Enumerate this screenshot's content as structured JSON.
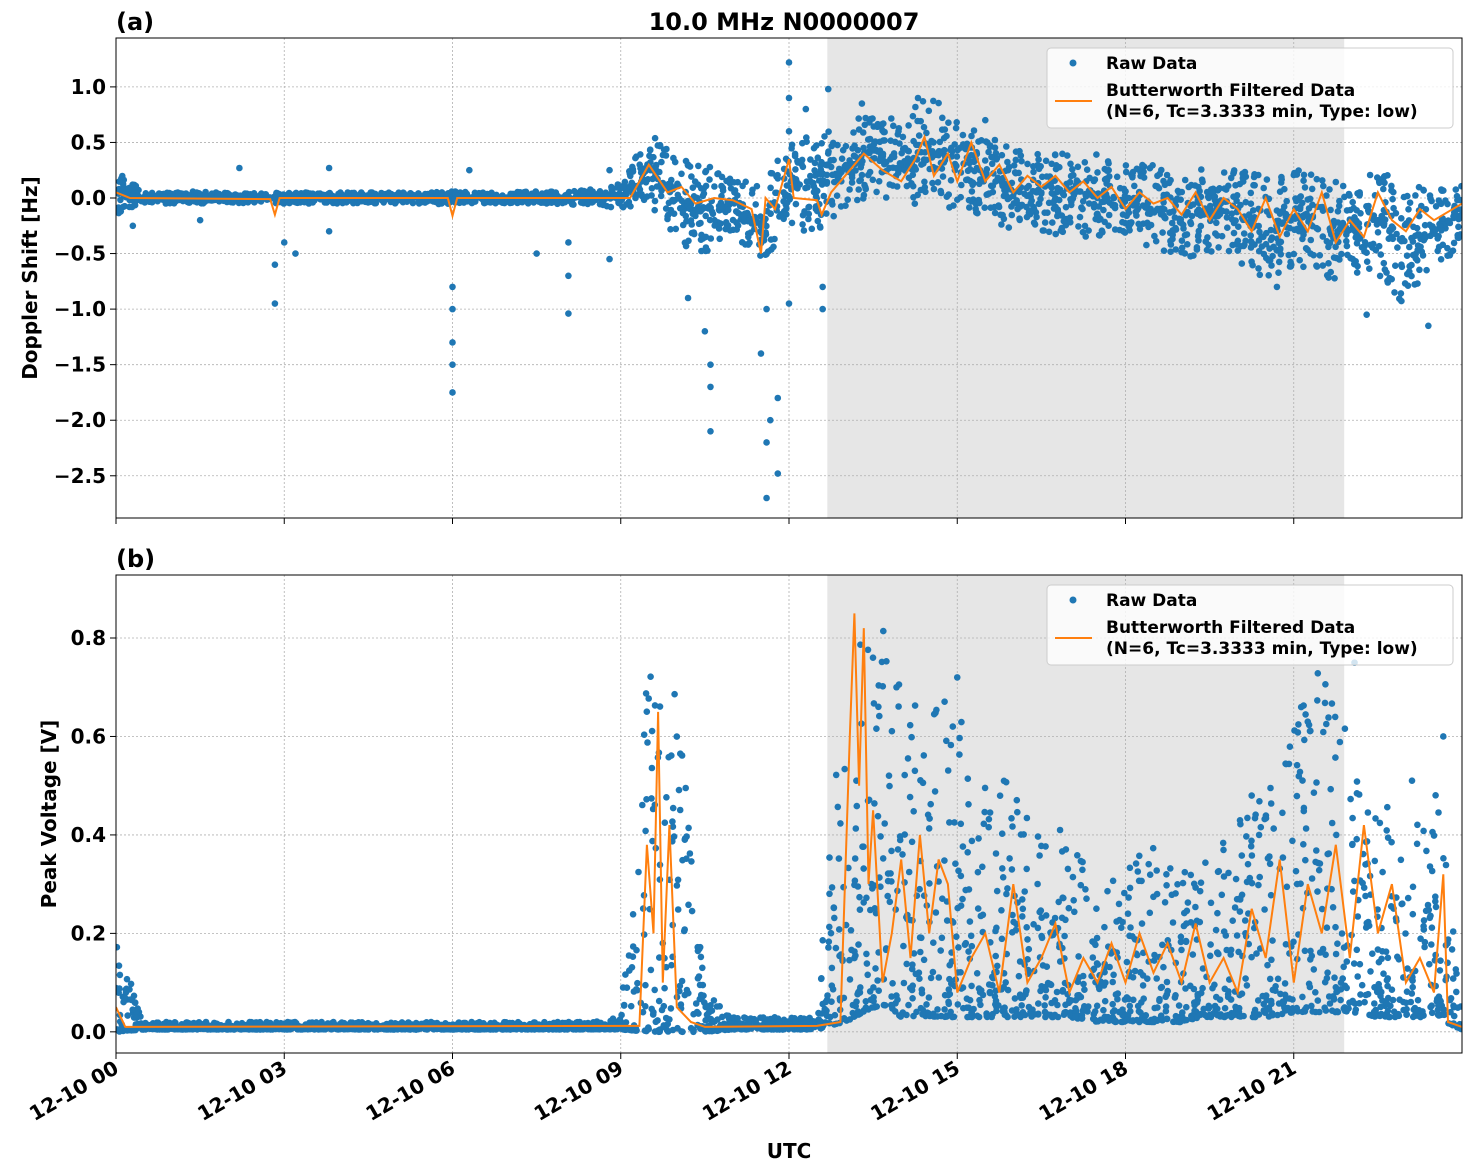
{
  "title": "10.0 MHz N0000007",
  "colors": {
    "raw": "#1f77b4",
    "filtered": "#ff7f0e",
    "shade": "#e6e6e6",
    "grid": "#b0b0b0"
  },
  "x_axis": {
    "label": "UTC",
    "xlim": [
      "00:00",
      "24:00"
    ],
    "ticks": [
      "00:00",
      "03:00",
      "06:00",
      "09:00",
      "12:00",
      "15:00",
      "18:00",
      "21:00"
    ],
    "tick_labels": [
      "12-10 00",
      "12-10 03",
      "12-10 06",
      "12-10 09",
      "12-10 12",
      "12-10 15",
      "12-10 18",
      "12-10 21"
    ]
  },
  "shaded_interval": [
    "12:41",
    "21:54"
  ],
  "chart_data": [
    {
      "type": "scatter+line",
      "panel_label": "(a)",
      "title": "10.0 MHz N0000007",
      "ylabel": "Doppler Shift [Hz]",
      "ylim": [
        -2.88,
        1.44
      ],
      "yticks": [
        1.0,
        0.5,
        0.0,
        -0.5,
        -1.0,
        -1.5,
        -2.0,
        -2.5
      ],
      "ytick_labels": [
        "1.0",
        "0.5",
        "0.0",
        "−0.5",
        "−1.0",
        "−1.5",
        "−2.0",
        "−2.5"
      ],
      "grid": true,
      "legend": {
        "position": "top-right",
        "raw": "Raw Data",
        "filtered_line1": "Butterworth Filtered Data",
        "filtered_line2": "(N=6, Tc=3.3333 min, Type: low)"
      },
      "raw_envelope": [
        [
          "00:00",
          -0.15,
          0.25
        ],
        [
          "00:30",
          -0.05,
          0.05
        ],
        [
          "01:00",
          -0.05,
          0.05
        ],
        [
          "01:30",
          -0.05,
          0.06
        ],
        [
          "02:00",
          -0.05,
          0.05
        ],
        [
          "02:30",
          -0.05,
          0.05
        ],
        [
          "03:00",
          -0.05,
          0.05
        ],
        [
          "03:30",
          -0.05,
          0.05
        ],
        [
          "04:00",
          -0.05,
          0.05
        ],
        [
          "04:30",
          -0.05,
          0.05
        ],
        [
          "05:00",
          -0.05,
          0.05
        ],
        [
          "05:30",
          -0.05,
          0.05
        ],
        [
          "06:00",
          -0.06,
          0.06
        ],
        [
          "06:30",
          -0.05,
          0.05
        ],
        [
          "07:00",
          -0.05,
          0.05
        ],
        [
          "07:30",
          -0.05,
          0.06
        ],
        [
          "08:00",
          -0.06,
          0.06
        ],
        [
          "08:30",
          -0.06,
          0.08
        ],
        [
          "09:00",
          -0.1,
          0.15
        ],
        [
          "09:30",
          -0.05,
          0.6
        ],
        [
          "10:00",
          -0.4,
          0.35
        ],
        [
          "10:30",
          -0.5,
          0.3
        ],
        [
          "11:00",
          -0.3,
          0.2
        ],
        [
          "11:30",
          -0.6,
          0.1
        ],
        [
          "12:00",
          -0.3,
          0.5
        ],
        [
          "12:30",
          -0.3,
          0.6
        ],
        [
          "13:00",
          -0.1,
          0.6
        ],
        [
          "13:30",
          0.0,
          0.9
        ],
        [
          "14:00",
          -0.1,
          0.7
        ],
        [
          "14:30",
          -0.1,
          0.95
        ],
        [
          "15:00",
          -0.1,
          0.7
        ],
        [
          "15:30",
          -0.2,
          0.6
        ],
        [
          "16:00",
          -0.3,
          0.45
        ],
        [
          "16:30",
          -0.3,
          0.4
        ],
        [
          "17:00",
          -0.35,
          0.45
        ],
        [
          "17:30",
          -0.35,
          0.4
        ],
        [
          "18:00",
          -0.35,
          0.3
        ],
        [
          "18:30",
          -0.45,
          0.3
        ],
        [
          "19:00",
          -0.55,
          0.2
        ],
        [
          "19:30",
          -0.5,
          0.3
        ],
        [
          "20:00",
          -0.6,
          0.35
        ],
        [
          "20:30",
          -0.8,
          0.3
        ],
        [
          "21:00",
          -0.6,
          0.3
        ],
        [
          "21:30",
          -0.8,
          0.2
        ],
        [
          "22:00",
          -0.7,
          0.1
        ],
        [
          "22:30",
          -0.7,
          0.3
        ],
        [
          "23:00",
          -1.0,
          0.15
        ],
        [
          "23:30",
          -0.7,
          0.1
        ],
        [
          "24:00",
          -0.4,
          0.2
        ]
      ],
      "raw_outliers": [
        [
          "00:18",
          -0.25
        ],
        [
          "01:30",
          -0.2
        ],
        [
          "02:12",
          0.27
        ],
        [
          "02:50",
          -0.95
        ],
        [
          "02:50",
          -0.6
        ],
        [
          "03:00",
          -0.4
        ],
        [
          "03:12",
          -0.5
        ],
        [
          "03:48",
          0.27
        ],
        [
          "03:48",
          -0.3
        ],
        [
          "06:00",
          -1.75
        ],
        [
          "06:00",
          -1.5
        ],
        [
          "06:00",
          -1.3
        ],
        [
          "06:00",
          -1.0
        ],
        [
          "06:00",
          -0.8
        ],
        [
          "06:18",
          0.25
        ],
        [
          "07:30",
          -0.5
        ],
        [
          "08:04",
          -1.04
        ],
        [
          "08:04",
          -0.7
        ],
        [
          "08:04",
          -0.4
        ],
        [
          "08:48",
          -0.55
        ],
        [
          "08:48",
          0.25
        ],
        [
          "10:12",
          -0.9
        ],
        [
          "10:30",
          -1.2
        ],
        [
          "10:36",
          -1.7
        ],
        [
          "10:36",
          -2.1
        ],
        [
          "10:36",
          -1.5
        ],
        [
          "11:30",
          -1.4
        ],
        [
          "11:36",
          -2.7
        ],
        [
          "11:36",
          -2.2
        ],
        [
          "11:40",
          -2.0
        ],
        [
          "11:36",
          -1.0
        ],
        [
          "11:48",
          -2.48
        ],
        [
          "11:48",
          -1.8
        ],
        [
          "12:00",
          1.22
        ],
        [
          "12:00",
          0.9
        ],
        [
          "12:00",
          0.6
        ],
        [
          "12:00",
          -0.95
        ],
        [
          "12:18",
          0.8
        ],
        [
          "12:36",
          -1.0
        ],
        [
          "12:36",
          -0.8
        ],
        [
          "12:42",
          0.98
        ],
        [
          "13:18",
          0.85
        ],
        [
          "14:18",
          0.9
        ],
        [
          "15:30",
          0.7
        ],
        [
          "20:42",
          -0.8
        ],
        [
          "21:18",
          -0.5
        ],
        [
          "22:18",
          -1.05
        ],
        [
          "23:24",
          -1.15
        ]
      ],
      "filtered": [
        [
          "00:00",
          0.05
        ],
        [
          "00:15",
          0.0
        ],
        [
          "02:45",
          -0.01
        ],
        [
          "02:50",
          -0.15
        ],
        [
          "02:55",
          0.0
        ],
        [
          "05:55",
          0.0
        ],
        [
          "06:00",
          -0.16
        ],
        [
          "06:05",
          0.0
        ],
        [
          "09:10",
          0.0
        ],
        [
          "09:30",
          0.3
        ],
        [
          "09:50",
          0.05
        ],
        [
          "10:05",
          0.1
        ],
        [
          "10:20",
          -0.05
        ],
        [
          "10:40",
          0.0
        ],
        [
          "11:00",
          -0.02
        ],
        [
          "11:20",
          -0.1
        ],
        [
          "11:30",
          -0.5
        ],
        [
          "11:35",
          0.0
        ],
        [
          "11:45",
          -0.1
        ],
        [
          "12:00",
          0.35
        ],
        [
          "12:05",
          0.0
        ],
        [
          "12:30",
          -0.02
        ],
        [
          "12:35",
          -0.15
        ],
        [
          "12:45",
          0.05
        ],
        [
          "13:00",
          0.2
        ],
        [
          "13:20",
          0.4
        ],
        [
          "13:40",
          0.25
        ],
        [
          "14:00",
          0.15
        ],
        [
          "14:15",
          0.35
        ],
        [
          "14:25",
          0.55
        ],
        [
          "14:35",
          0.2
        ],
        [
          "14:50",
          0.4
        ],
        [
          "15:00",
          0.15
        ],
        [
          "15:15",
          0.5
        ],
        [
          "15:30",
          0.15
        ],
        [
          "15:45",
          0.3
        ],
        [
          "16:00",
          0.05
        ],
        [
          "16:15",
          0.2
        ],
        [
          "16:30",
          0.1
        ],
        [
          "16:45",
          0.2
        ],
        [
          "17:00",
          0.05
        ],
        [
          "17:15",
          0.15
        ],
        [
          "17:30",
          0.0
        ],
        [
          "17:45",
          0.1
        ],
        [
          "18:00",
          -0.1
        ],
        [
          "18:15",
          0.05
        ],
        [
          "18:30",
          -0.05
        ],
        [
          "18:45",
          0.0
        ],
        [
          "19:00",
          -0.15
        ],
        [
          "19:15",
          0.05
        ],
        [
          "19:30",
          -0.2
        ],
        [
          "19:45",
          0.0
        ],
        [
          "20:00",
          -0.1
        ],
        [
          "20:15",
          -0.3
        ],
        [
          "20:30",
          0.0
        ],
        [
          "20:45",
          -0.35
        ],
        [
          "21:00",
          -0.1
        ],
        [
          "21:15",
          -0.3
        ],
        [
          "21:30",
          0.05
        ],
        [
          "21:45",
          -0.4
        ],
        [
          "22:00",
          -0.2
        ],
        [
          "22:15",
          -0.35
        ],
        [
          "22:30",
          0.05
        ],
        [
          "22:45",
          -0.2
        ],
        [
          "23:00",
          -0.3
        ],
        [
          "23:15",
          -0.1
        ],
        [
          "23:30",
          -0.2
        ],
        [
          "24:00",
          -0.05
        ]
      ]
    },
    {
      "type": "scatter+line",
      "panel_label": "(b)",
      "ylabel": "Peak Voltage [V]",
      "ylim": [
        -0.043,
        0.928
      ],
      "yticks": [
        0.0,
        0.2,
        0.4,
        0.6,
        0.8
      ],
      "ytick_labels": [
        "0.0",
        "0.2",
        "0.4",
        "0.6",
        "0.8"
      ],
      "grid": true,
      "legend": {
        "position": "top-right",
        "raw": "Raw Data",
        "filtered_line1": "Butterworth Filtered Data",
        "filtered_line2": "(N=6, Tc=3.3333 min, Type: low)"
      },
      "raw_envelope": [
        [
          "00:00",
          0.0,
          0.19
        ],
        [
          "00:30",
          0.005,
          0.02
        ],
        [
          "01:00",
          0.005,
          0.02
        ],
        [
          "01:30",
          0.005,
          0.02
        ],
        [
          "02:00",
          0.005,
          0.02
        ],
        [
          "02:30",
          0.005,
          0.02
        ],
        [
          "03:00",
          0.005,
          0.02
        ],
        [
          "03:30",
          0.005,
          0.02
        ],
        [
          "04:00",
          0.005,
          0.02
        ],
        [
          "04:30",
          0.005,
          0.02
        ],
        [
          "05:00",
          0.005,
          0.02
        ],
        [
          "05:30",
          0.005,
          0.02
        ],
        [
          "06:00",
          0.005,
          0.02
        ],
        [
          "06:30",
          0.005,
          0.02
        ],
        [
          "07:00",
          0.005,
          0.02
        ],
        [
          "07:30",
          0.005,
          0.02
        ],
        [
          "08:00",
          0.005,
          0.02
        ],
        [
          "08:30",
          0.005,
          0.02
        ],
        [
          "09:00",
          0.005,
          0.03
        ],
        [
          "09:30",
          0.0,
          0.77
        ],
        [
          "10:00",
          0.0,
          0.69
        ],
        [
          "10:30",
          0.0,
          0.08
        ],
        [
          "11:00",
          0.005,
          0.03
        ],
        [
          "11:30",
          0.005,
          0.03
        ],
        [
          "12:00",
          0.005,
          0.03
        ],
        [
          "12:30",
          0.005,
          0.03
        ],
        [
          "13:00",
          0.02,
          0.88
        ],
        [
          "13:30",
          0.05,
          0.88
        ],
        [
          "14:00",
          0.03,
          0.7
        ],
        [
          "14:30",
          0.03,
          0.65
        ],
        [
          "15:00",
          0.03,
          0.72
        ],
        [
          "15:30",
          0.03,
          0.5
        ],
        [
          "16:00",
          0.03,
          0.51
        ],
        [
          "16:30",
          0.03,
          0.4
        ],
        [
          "17:00",
          0.03,
          0.4
        ],
        [
          "17:30",
          0.02,
          0.3
        ],
        [
          "18:00",
          0.02,
          0.35
        ],
        [
          "18:30",
          0.02,
          0.4
        ],
        [
          "19:00",
          0.02,
          0.35
        ],
        [
          "19:30",
          0.03,
          0.35
        ],
        [
          "20:00",
          0.03,
          0.48
        ],
        [
          "20:30",
          0.03,
          0.5
        ],
        [
          "21:00",
          0.04,
          0.65
        ],
        [
          "21:30",
          0.04,
          0.75
        ],
        [
          "22:00",
          0.04,
          0.6
        ],
        [
          "22:30",
          0.03,
          0.45
        ],
        [
          "23:00",
          0.03,
          0.5
        ],
        [
          "23:30",
          0.03,
          0.6
        ],
        [
          "24:00",
          0.005,
          0.03
        ]
      ],
      "raw_outliers": [
        [
          "13:55",
          0.7
        ],
        [
          "15:00",
          0.72
        ],
        [
          "15:50",
          0.51
        ],
        [
          "16:50",
          0.41
        ],
        [
          "20:15",
          0.48
        ],
        [
          "21:15",
          0.63
        ],
        [
          "22:05",
          0.75
        ],
        [
          "23:40",
          0.6
        ]
      ],
      "filtered": [
        [
          "00:00",
          0.05
        ],
        [
          "00:10",
          0.01
        ],
        [
          "09:20",
          0.012
        ],
        [
          "09:28",
          0.38
        ],
        [
          "09:35",
          0.2
        ],
        [
          "09:40",
          0.65
        ],
        [
          "09:45",
          0.1
        ],
        [
          "09:52",
          0.42
        ],
        [
          "10:00",
          0.05
        ],
        [
          "10:15",
          0.02
        ],
        [
          "10:30",
          0.01
        ],
        [
          "12:30",
          0.012
        ],
        [
          "12:55",
          0.02
        ],
        [
          "13:05",
          0.6
        ],
        [
          "13:10",
          0.85
        ],
        [
          "13:15",
          0.5
        ],
        [
          "13:20",
          0.82
        ],
        [
          "13:25",
          0.3
        ],
        [
          "13:30",
          0.45
        ],
        [
          "13:40",
          0.1
        ],
        [
          "13:50",
          0.2
        ],
        [
          "14:00",
          0.35
        ],
        [
          "14:10",
          0.15
        ],
        [
          "14:20",
          0.4
        ],
        [
          "14:30",
          0.2
        ],
        [
          "14:40",
          0.35
        ],
        [
          "14:50",
          0.3
        ],
        [
          "15:00",
          0.08
        ],
        [
          "15:15",
          0.15
        ],
        [
          "15:30",
          0.2
        ],
        [
          "15:45",
          0.08
        ],
        [
          "16:00",
          0.3
        ],
        [
          "16:15",
          0.1
        ],
        [
          "16:30",
          0.15
        ],
        [
          "16:45",
          0.22
        ],
        [
          "17:00",
          0.08
        ],
        [
          "17:15",
          0.15
        ],
        [
          "17:30",
          0.1
        ],
        [
          "17:45",
          0.18
        ],
        [
          "18:00",
          0.1
        ],
        [
          "18:15",
          0.2
        ],
        [
          "18:30",
          0.12
        ],
        [
          "18:45",
          0.18
        ],
        [
          "19:00",
          0.1
        ],
        [
          "19:15",
          0.22
        ],
        [
          "19:30",
          0.1
        ],
        [
          "19:45",
          0.15
        ],
        [
          "20:00",
          0.08
        ],
        [
          "20:15",
          0.25
        ],
        [
          "20:30",
          0.15
        ],
        [
          "20:45",
          0.35
        ],
        [
          "21:00",
          0.1
        ],
        [
          "21:15",
          0.3
        ],
        [
          "21:30",
          0.2
        ],
        [
          "21:45",
          0.38
        ],
        [
          "22:00",
          0.15
        ],
        [
          "22:15",
          0.42
        ],
        [
          "22:30",
          0.2
        ],
        [
          "22:45",
          0.3
        ],
        [
          "23:00",
          0.1
        ],
        [
          "23:15",
          0.15
        ],
        [
          "23:30",
          0.08
        ],
        [
          "23:40",
          0.32
        ],
        [
          "23:45",
          0.02
        ],
        [
          "24:00",
          0.01
        ]
      ]
    }
  ]
}
